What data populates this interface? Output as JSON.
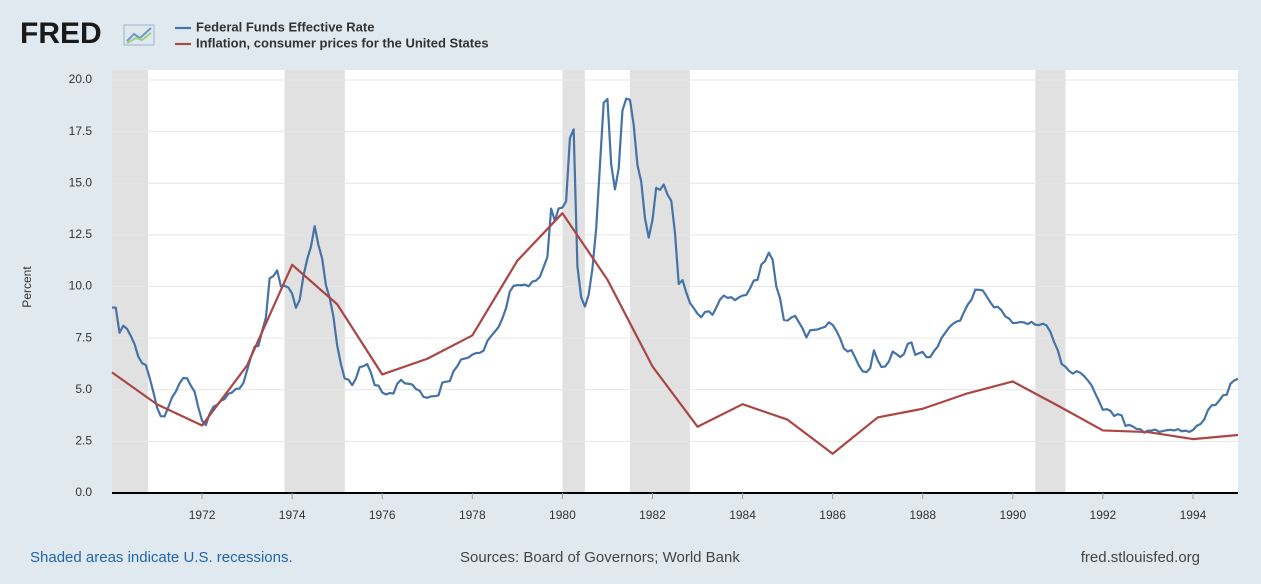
{
  "chart_data": {
    "type": "line",
    "logo": "FRED",
    "ylabel": "Percent",
    "xlim": [
      1970,
      1995
    ],
    "xticks": [
      1972,
      1974,
      1976,
      1978,
      1980,
      1982,
      1984,
      1986,
      1988,
      1990,
      1992,
      1994
    ],
    "ylim": [
      0,
      20
    ],
    "yticks": [
      {
        "value": 0,
        "label": "0.0"
      },
      {
        "value": 2.5,
        "label": "2.5"
      },
      {
        "value": 5,
        "label": "5.0"
      },
      {
        "value": 7.5,
        "label": "7.5"
      },
      {
        "value": 10,
        "label": "10.0"
      },
      {
        "value": 12.5,
        "label": "12.5"
      },
      {
        "value": 15,
        "label": "15.0"
      },
      {
        "value": 17.5,
        "label": "17.5"
      },
      {
        "value": 20,
        "label": "20.0"
      }
    ],
    "grid": true,
    "recession_color": "#e1e1e1",
    "recessions": [
      [
        1970,
        1970.8
      ],
      [
        1973.83,
        1975.17
      ],
      [
        1980,
        1980.5
      ],
      [
        1981.5,
        1982.83
      ],
      [
        1990.5,
        1991.17
      ]
    ],
    "series": [
      {
        "name": "Federal Funds Effective Rate",
        "color": "#4572a7",
        "x": [
          1970,
          1970.083,
          1970.167,
          1970.25,
          1970.333,
          1970.417,
          1970.5,
          1970.583,
          1970.667,
          1970.75,
          1970.833,
          1970.917,
          1971,
          1971.083,
          1971.167,
          1971.25,
          1971.333,
          1971.417,
          1971.5,
          1971.583,
          1971.667,
          1971.75,
          1971.833,
          1971.917,
          1972,
          1972.083,
          1972.167,
          1972.25,
          1972.333,
          1972.417,
          1972.5,
          1972.583,
          1972.667,
          1972.75,
          1972.833,
          1972.917,
          1973,
          1973.083,
          1973.167,
          1973.25,
          1973.333,
          1973.417,
          1973.5,
          1973.583,
          1973.667,
          1973.75,
          1973.833,
          1973.917,
          1974,
          1974.083,
          1974.167,
          1974.25,
          1974.333,
          1974.417,
          1974.5,
          1974.583,
          1974.667,
          1974.75,
          1974.833,
          1974.917,
          1975,
          1975.083,
          1975.167,
          1975.25,
          1975.333,
          1975.417,
          1975.5,
          1975.583,
          1975.667,
          1975.75,
          1975.833,
          1975.917,
          1976,
          1976.083,
          1976.167,
          1976.25,
          1976.333,
          1976.417,
          1976.5,
          1976.583,
          1976.667,
          1976.75,
          1976.833,
          1976.917,
          1977,
          1977.083,
          1977.167,
          1977.25,
          1977.333,
          1977.417,
          1977.5,
          1977.583,
          1977.667,
          1977.75,
          1977.833,
          1977.917,
          1978,
          1978.083,
          1978.167,
          1978.25,
          1978.333,
          1978.417,
          1978.5,
          1978.583,
          1978.667,
          1978.75,
          1978.833,
          1978.917,
          1979,
          1979.083,
          1979.167,
          1979.25,
          1979.333,
          1979.417,
          1979.5,
          1979.583,
          1979.667,
          1979.75,
          1979.833,
          1979.917,
          1980,
          1980.083,
          1980.167,
          1980.25,
          1980.333,
          1980.417,
          1980.5,
          1980.583,
          1980.667,
          1980.75,
          1980.833,
          1980.917,
          1981,
          1981.083,
          1981.167,
          1981.25,
          1981.333,
          1981.417,
          1981.5,
          1981.583,
          1981.667,
          1981.75,
          1981.833,
          1981.917,
          1982,
          1982.083,
          1982.167,
          1982.25,
          1982.333,
          1982.417,
          1982.5,
          1982.583,
          1982.667,
          1982.75,
          1982.833,
          1982.917,
          1983,
          1983.083,
          1983.167,
          1983.25,
          1983.333,
          1983.417,
          1983.5,
          1983.583,
          1983.667,
          1983.75,
          1983.833,
          1983.917,
          1984,
          1984.083,
          1984.167,
          1984.25,
          1984.333,
          1984.417,
          1984.5,
          1984.583,
          1984.667,
          1984.75,
          1984.833,
          1984.917,
          1985,
          1985.083,
          1985.167,
          1985.25,
          1985.333,
          1985.417,
          1985.5,
          1985.583,
          1985.667,
          1985.75,
          1985.833,
          1985.917,
          1986,
          1986.083,
          1986.167,
          1986.25,
          1986.333,
          1986.417,
          1986.5,
          1986.583,
          1986.667,
          1986.75,
          1986.833,
          1986.917,
          1987,
          1987.083,
          1987.167,
          1987.25,
          1987.333,
          1987.417,
          1987.5,
          1987.583,
          1987.667,
          1987.75,
          1987.833,
          1987.917,
          1988,
          1988.083,
          1988.167,
          1988.25,
          1988.333,
          1988.417,
          1988.5,
          1988.583,
          1988.667,
          1988.75,
          1988.833,
          1988.917,
          1989,
          1989.083,
          1989.167,
          1989.25,
          1989.333,
          1989.417,
          1989.5,
          1989.583,
          1989.667,
          1989.75,
          1989.833,
          1989.917,
          1990,
          1990.083,
          1990.167,
          1990.25,
          1990.333,
          1990.417,
          1990.5,
          1990.583,
          1990.667,
          1990.75,
          1990.833,
          1990.917,
          1991,
          1991.083,
          1991.167,
          1991.25,
          1991.333,
          1991.417,
          1991.5,
          1991.583,
          1991.667,
          1991.75,
          1991.833,
          1991.917,
          1992,
          1992.083,
          1992.167,
          1992.25,
          1992.333,
          1992.417,
          1992.5,
          1992.583,
          1992.667,
          1992.75,
          1992.833,
          1992.917,
          1993,
          1993.083,
          1993.167,
          1993.25,
          1993.333,
          1993.417,
          1993.5,
          1993.583,
          1993.667,
          1993.75,
          1993.833,
          1993.917,
          1994,
          1994.083,
          1994.167,
          1994.25,
          1994.333,
          1994.417,
          1994.5,
          1994.583,
          1994.667,
          1994.75,
          1994.833,
          1994.917,
          1995
        ],
        "values": [
          8.98,
          8.98,
          7.76,
          8.1,
          7.95,
          7.61,
          7.21,
          6.61,
          6.29,
          6.2,
          5.6,
          4.9,
          4.14,
          3.72,
          3.71,
          4.16,
          4.63,
          4.91,
          5.31,
          5.57,
          5.55,
          5.2,
          4.91,
          4.14,
          3.5,
          3.29,
          3.83,
          4.17,
          4.27,
          4.46,
          4.55,
          4.8,
          4.87,
          5.04,
          5.06,
          5.33,
          5.94,
          6.58,
          7.09,
          7.12,
          7.84,
          8.49,
          10.4,
          10.5,
          10.78,
          10.01,
          10.03,
          9.95,
          9.65,
          8.97,
          9.35,
          10.51,
          11.31,
          11.93,
          12.92,
          12.01,
          11.34,
          10.06,
          9.45,
          8.53,
          7.13,
          6.24,
          5.54,
          5.49,
          5.22,
          5.55,
          6.1,
          6.14,
          6.24,
          5.82,
          5.22,
          5.2,
          4.87,
          4.77,
          4.84,
          4.82,
          5.29,
          5.48,
          5.31,
          5.29,
          5.25,
          5.03,
          4.95,
          4.65,
          4.61,
          4.68,
          4.69,
          4.73,
          5.35,
          5.39,
          5.42,
          5.9,
          6.14,
          6.47,
          6.51,
          6.56,
          6.7,
          6.78,
          6.79,
          6.89,
          7.36,
          7.6,
          7.81,
          8.04,
          8.45,
          8.96,
          9.76,
          10.03,
          10.07,
          10.06,
          10.09,
          10.01,
          10.24,
          10.29,
          10.47,
          10.94,
          11.43,
          13.77,
          13.18,
          13.78,
          13.82,
          14.13,
          17.19,
          17.61,
          10.98,
          9.47,
          9.03,
          9.61,
          10.87,
          12.81,
          15.85,
          18.9,
          19.08,
          15.93,
          14.7,
          15.72,
          18.52,
          19.1,
          19.04,
          17.82,
          15.87,
          15.08,
          13.31,
          12.37,
          13.22,
          14.78,
          14.68,
          14.94,
          14.45,
          14.15,
          12.59,
          10.12,
          10.31,
          9.71,
          9.2,
          8.95,
          8.68,
          8.51,
          8.77,
          8.8,
          8.63,
          8.98,
          9.37,
          9.56,
          9.45,
          9.48,
          9.34,
          9.47,
          9.56,
          9.59,
          9.91,
          10.29,
          10.32,
          11.06,
          11.23,
          11.64,
          11.3,
          9.99,
          9.43,
          8.38,
          8.35,
          8.5,
          8.58,
          8.27,
          7.97,
          7.53,
          7.88,
          7.9,
          7.92,
          7.99,
          8.05,
          8.27,
          8.14,
          7.86,
          7.48,
          6.99,
          6.85,
          6.92,
          6.56,
          6.17,
          5.89,
          5.85,
          6.04,
          6.91,
          6.43,
          6.1,
          6.13,
          6.37,
          6.85,
          6.73,
          6.58,
          6.73,
          7.22,
          7.29,
          6.69,
          6.77,
          6.83,
          6.58,
          6.58,
          6.87,
          7.09,
          7.51,
          7.75,
          8.01,
          8.19,
          8.3,
          8.35,
          8.76,
          9.12,
          9.36,
          9.85,
          9.84,
          9.81,
          9.53,
          9.24,
          8.99,
          9.02,
          8.84,
          8.55,
          8.45,
          8.23,
          8.24,
          8.28,
          8.26,
          8.18,
          8.29,
          8.15,
          8.13,
          8.2,
          8.11,
          7.81,
          7.31,
          6.91,
          6.25,
          6.12,
          5.91,
          5.78,
          5.9,
          5.82,
          5.66,
          5.45,
          5.21,
          4.81,
          4.43,
          4.03,
          4.06,
          3.98,
          3.73,
          3.82,
          3.76,
          3.25,
          3.3,
          3.22,
          3.1,
          3.09,
          2.92,
          3.02,
          3.03,
          3.07,
          2.96,
          3.0,
          3.04,
          3.06,
          3.03,
          3.09,
          2.99,
          3.02,
          2.96,
          3.05,
          3.25,
          3.34,
          3.56,
          4.01,
          4.25,
          4.26,
          4.47,
          4.73,
          4.76,
          5.29,
          5.45,
          5.53
        ]
      },
      {
        "name": "Inflation, consumer prices for the United States",
        "color": "#aa4643",
        "x": [
          1970,
          1971,
          1972,
          1973,
          1974,
          1975,
          1976,
          1977,
          1978,
          1979,
          1980,
          1981,
          1982,
          1983,
          1984,
          1985,
          1986,
          1987,
          1988,
          1989,
          1990,
          1991,
          1992,
          1993,
          1994,
          1995
        ],
        "values": [
          5.84,
          4.29,
          3.27,
          6.18,
          11.05,
          9.14,
          5.74,
          6.5,
          7.63,
          11.25,
          13.55,
          10.33,
          6.13,
          3.21,
          4.3,
          3.55,
          1.9,
          3.66,
          4.08,
          4.83,
          5.4,
          4.23,
          3.03,
          2.95,
          2.61,
          2.81
        ]
      }
    ],
    "footer": {
      "note": "Shaded areas indicate U.S. recessions.",
      "sources": "Sources: Board of Governors; World Bank",
      "site": "fred.stlouisfed.org"
    }
  }
}
